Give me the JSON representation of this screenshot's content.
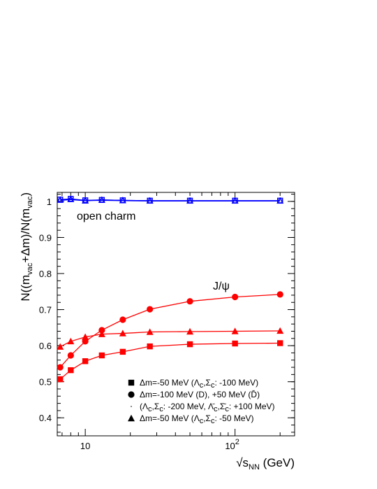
{
  "chart_data": {
    "type": "line",
    "x_scale": "log",
    "xlim": [
      6.5,
      250
    ],
    "ylim": [
      0.35,
      1.025
    ],
    "x_ticks": [
      {
        "value": 10,
        "label": "10"
      },
      {
        "value": 100,
        "label": "10",
        "sup": "2"
      }
    ],
    "y_ticks": [
      {
        "value": 0.4,
        "label": "0.4"
      },
      {
        "value": 0.5,
        "label": "0.5"
      },
      {
        "value": 0.6,
        "label": "0.6"
      },
      {
        "value": 0.7,
        "label": "0.7"
      },
      {
        "value": 0.8,
        "label": "0.8"
      },
      {
        "value": 0.9,
        "label": "0.9"
      },
      {
        "value": 1.0,
        "label": "1"
      }
    ],
    "xlabel": {
      "pre": "√s",
      "sub": "NN",
      "post": " (GeV)"
    },
    "ylabel": {
      "p1": "N((m",
      "s1": "vac",
      "p2": "+Δm)/N(m",
      "s2": "vac",
      "p3": ")"
    },
    "x": [
      6.8,
      8.0,
      10.0,
      12.9,
      17.8,
      27.0,
      50.0,
      100.0,
      200.0
    ],
    "series": [
      {
        "group": "jpsi",
        "marker": "square",
        "color": "#ff0000",
        "values": [
          0.507,
          0.532,
          0.557,
          0.573,
          0.583,
          0.598,
          0.604,
          0.606,
          0.607
        ]
      },
      {
        "group": "jpsi",
        "marker": "circle",
        "color": "#ff0000",
        "values": [
          0.54,
          0.573,
          0.612,
          0.643,
          0.672,
          0.701,
          0.723,
          0.735,
          0.742
        ]
      },
      {
        "group": "jpsi",
        "marker": "triangle",
        "color": "#ff0000",
        "values": [
          0.597,
          0.612,
          0.624,
          0.632,
          0.634,
          0.638,
          0.639,
          0.64,
          0.641
        ]
      },
      {
        "group": "open-charm",
        "marker": "open-square",
        "color": "#0000ff",
        "values": [
          1.005,
          1.007,
          1.003,
          1.004,
          1.003,
          1.002,
          1.002,
          1.002,
          1.002
        ]
      },
      {
        "group": "open-charm",
        "marker": "open-triangle",
        "color": "#0000ff",
        "values": [
          1.004,
          1.006,
          1.002,
          1.004,
          1.003,
          1.002,
          1.002,
          1.002,
          1.002
        ]
      },
      {
        "group": "open-charm",
        "marker": "open-circle",
        "color": "#0000ff",
        "values": [
          1.003,
          1.005,
          1.002,
          1.003,
          1.002,
          1.001,
          1.001,
          1.001,
          1.001
        ]
      }
    ],
    "annotations": {
      "open_charm": "open charm",
      "jpsi": "J/ψ"
    },
    "legend": [
      {
        "marker": "square",
        "parts": [
          [
            "n",
            "Δm=-50 MeV (Λ"
          ],
          [
            "s",
            "c"
          ],
          [
            "n",
            ",Σ"
          ],
          [
            "s",
            "c"
          ],
          [
            "n",
            ": -100 MeV)"
          ]
        ]
      },
      {
        "marker": "circle",
        "parts": [
          [
            "n",
            "Δm=-100 MeV (D), +50 MeV (D̄)"
          ]
        ]
      },
      {
        "marker": "dot",
        "parts": [
          [
            "n",
            "(Λ"
          ],
          [
            "s",
            "c"
          ],
          [
            "n",
            ",Σ"
          ],
          [
            "s",
            "c"
          ],
          [
            "n",
            ": -200 MeV, Λ̄"
          ],
          [
            "s",
            "c"
          ],
          [
            "n",
            ",Σ̄"
          ],
          [
            "s",
            "c"
          ],
          [
            "n",
            ": +100 MeV)"
          ]
        ]
      },
      {
        "marker": "triangle",
        "parts": [
          [
            "n",
            "Δm=-50 MeV (Λ"
          ],
          [
            "s",
            "c"
          ],
          [
            "n",
            ",Σ"
          ],
          [
            "s",
            "c"
          ],
          [
            "n",
            ": -50 MeV)"
          ]
        ]
      }
    ]
  }
}
